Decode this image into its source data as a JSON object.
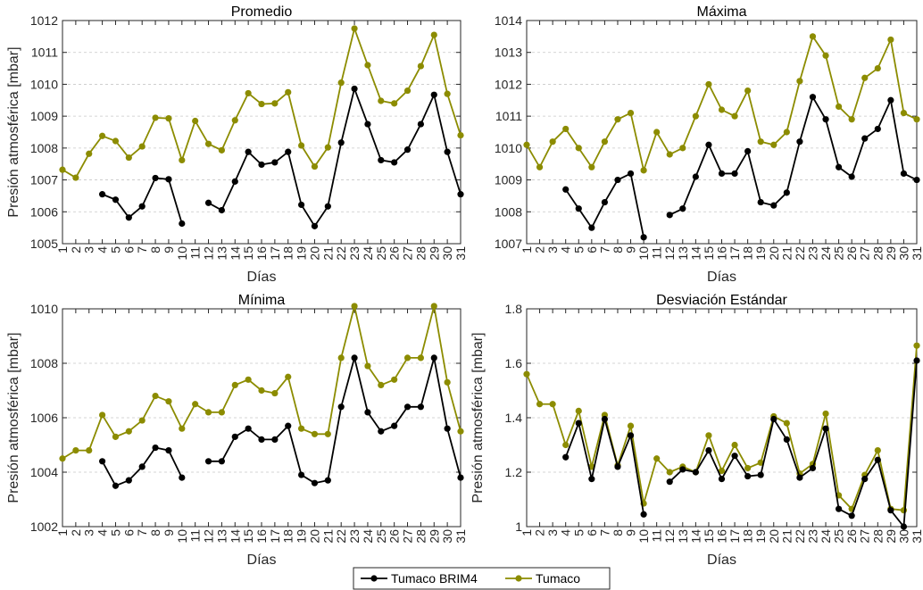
{
  "legend": {
    "entries": [
      {
        "name": "Tumaco BRIM4",
        "color": "#000000"
      },
      {
        "name": "Tumaco",
        "color": "#8c8c00"
      }
    ]
  },
  "chart_data": [
    {
      "type": "line",
      "title": "Promedio",
      "xlabel": "Días",
      "ylabel": "Presión atmosférica [mbar]",
      "ylim": [
        1005,
        1012
      ],
      "yticks": [
        1005,
        1006,
        1007,
        1008,
        1009,
        1010,
        1011,
        1012
      ],
      "grid": true,
      "x": [
        1,
        2,
        3,
        4,
        5,
        6,
        7,
        8,
        9,
        10,
        11,
        12,
        13,
        14,
        15,
        16,
        17,
        18,
        19,
        20,
        21,
        22,
        23,
        24,
        25,
        26,
        27,
        28,
        29,
        30,
        31
      ],
      "series": [
        {
          "name": "Tumaco BRIM4",
          "color": "#000000",
          "values": [
            null,
            null,
            null,
            1006.55,
            1006.38,
            1005.82,
            1006.17,
            1007.06,
            1007.02,
            1005.63,
            null,
            1006.28,
            1006.05,
            1006.95,
            1007.88,
            1007.48,
            1007.55,
            1007.88,
            1006.22,
            1005.55,
            1006.17,
            1008.17,
            1009.86,
            1008.75,
            1007.62,
            1007.55,
            1007.95,
            1008.75,
            1009.67,
            1007.88,
            1006.55
          ]
        },
        {
          "name": "Tumaco",
          "color": "#8c8c00",
          "values": [
            1007.32,
            1007.07,
            1007.82,
            1008.38,
            1008.22,
            1007.7,
            1008.05,
            1008.95,
            1008.93,
            1007.62,
            1008.85,
            1008.13,
            1007.93,
            1008.87,
            1009.72,
            1009.38,
            1009.4,
            1009.75,
            1008.08,
            1007.42,
            1008.02,
            1010.05,
            1011.75,
            1010.6,
            1009.48,
            1009.4,
            1009.8,
            1010.57,
            1011.55,
            1009.7,
            1008.4
          ]
        }
      ]
    },
    {
      "type": "line",
      "title": "Máxima",
      "xlabel": "Días",
      "ylabel": "",
      "ylim": [
        1007,
        1014
      ],
      "yticks": [
        1007,
        1008,
        1009,
        1010,
        1011,
        1012,
        1013,
        1014
      ],
      "grid": true,
      "x": [
        1,
        2,
        3,
        4,
        5,
        6,
        7,
        8,
        9,
        10,
        11,
        12,
        13,
        14,
        15,
        16,
        17,
        18,
        19,
        20,
        21,
        22,
        23,
        24,
        25,
        26,
        27,
        28,
        29,
        30,
        31
      ],
      "series": [
        {
          "name": "Tumaco BRIM4",
          "color": "#000000",
          "values": [
            null,
            null,
            null,
            1008.7,
            1008.1,
            1007.5,
            1008.3,
            1009.0,
            1009.2,
            1007.2,
            null,
            1007.9,
            1008.1,
            1009.1,
            1010.1,
            1009.2,
            1009.2,
            1009.9,
            1008.3,
            1008.2,
            1008.6,
            1010.2,
            1011.6,
            1010.9,
            1009.4,
            1009.1,
            1010.3,
            1010.6,
            1011.5,
            1009.2,
            1009.0
          ]
        },
        {
          "name": "Tumaco",
          "color": "#8c8c00",
          "values": [
            1010.1,
            1009.4,
            1010.2,
            1010.6,
            1010.0,
            1009.4,
            1010.2,
            1010.9,
            1011.1,
            1009.3,
            1010.5,
            1009.8,
            1010.0,
            1011.0,
            1012.0,
            1011.2,
            1011.0,
            1011.8,
            1010.2,
            1010.1,
            1010.5,
            1012.1,
            1013.5,
            1012.9,
            1011.3,
            1010.9,
            1012.2,
            1012.5,
            1013.4,
            1011.1,
            1010.9
          ]
        }
      ]
    },
    {
      "type": "line",
      "title": "Mínima",
      "xlabel": "Días",
      "ylabel": "Presión atmosférica [mbar]",
      "ylim": [
        1002,
        1010
      ],
      "yticks": [
        1002,
        1004,
        1006,
        1008,
        1010
      ],
      "grid": true,
      "x": [
        1,
        2,
        3,
        4,
        5,
        6,
        7,
        8,
        9,
        10,
        11,
        12,
        13,
        14,
        15,
        16,
        17,
        18,
        19,
        20,
        21,
        22,
        23,
        24,
        25,
        26,
        27,
        28,
        29,
        30,
        31
      ],
      "series": [
        {
          "name": "Tumaco BRIM4",
          "color": "#000000",
          "values": [
            null,
            null,
            null,
            1004.4,
            1003.5,
            1003.7,
            1004.2,
            1004.9,
            1004.8,
            1003.8,
            null,
            1004.4,
            1004.4,
            1005.3,
            1005.6,
            1005.2,
            1005.2,
            1005.7,
            1003.9,
            1003.6,
            1003.7,
            1006.4,
            1008.2,
            1006.2,
            1005.5,
            1005.7,
            1006.4,
            1006.4,
            1008.2,
            1005.6,
            1003.8
          ]
        },
        {
          "name": "Tumaco",
          "color": "#8c8c00",
          "values": [
            1004.5,
            1004.8,
            1004.8,
            1006.1,
            1005.3,
            1005.5,
            1005.9,
            1006.8,
            1006.6,
            1005.6,
            1006.5,
            1006.2,
            1006.2,
            1007.2,
            1007.4,
            1007.0,
            1006.9,
            1007.5,
            1005.6,
            1005.4,
            1005.4,
            1008.2,
            1010.1,
            1007.9,
            1007.2,
            1007.4,
            1008.2,
            1008.2,
            1010.1,
            1007.3,
            1005.5
          ]
        }
      ]
    },
    {
      "type": "line",
      "title": "Desviación Estándar",
      "xlabel": "Días",
      "ylabel": "Presión atmosférica [mbar]",
      "ylim": [
        1,
        1.8
      ],
      "yticks": [
        1,
        1.2,
        1.4,
        1.6,
        1.8
      ],
      "grid": true,
      "x": [
        1,
        2,
        3,
        4,
        5,
        6,
        7,
        8,
        9,
        10,
        11,
        12,
        13,
        14,
        15,
        16,
        17,
        18,
        19,
        20,
        21,
        22,
        23,
        24,
        25,
        26,
        27,
        28,
        29,
        30,
        31
      ],
      "series": [
        {
          "name": "Tumaco BRIM4",
          "color": "#000000",
          "values": [
            null,
            null,
            null,
            1.255,
            1.38,
            1.175,
            1.395,
            1.22,
            1.335,
            1.045,
            null,
            1.165,
            1.21,
            1.2,
            1.28,
            1.175,
            1.26,
            1.185,
            1.19,
            1.395,
            1.32,
            1.18,
            1.215,
            1.36,
            1.065,
            1.04,
            1.175,
            1.245,
            1.06,
            1.0,
            1.61
          ]
        },
        {
          "name": "Tumaco",
          "color": "#8c8c00",
          "values": [
            1.56,
            1.45,
            1.45,
            1.3,
            1.425,
            1.22,
            1.41,
            1.225,
            1.37,
            1.085,
            1.25,
            1.2,
            1.22,
            1.2,
            1.335,
            1.205,
            1.3,
            1.215,
            1.235,
            1.405,
            1.38,
            1.195,
            1.23,
            1.415,
            1.115,
            1.065,
            1.19,
            1.28,
            1.065,
            1.06,
            1.665
          ]
        }
      ]
    }
  ]
}
